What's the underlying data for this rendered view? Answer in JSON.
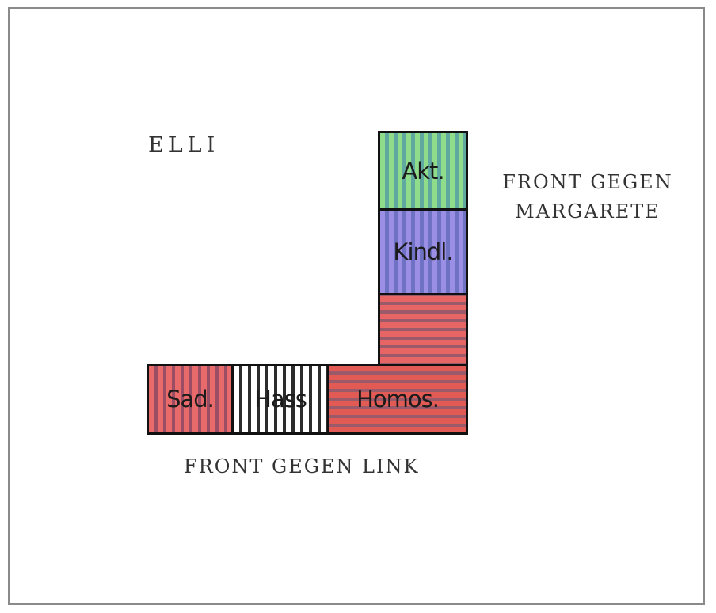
{
  "title": "ELLI",
  "front_right": [
    "FRONT GEGEN",
    "MARGARETE"
  ],
  "front_bottom": "FRONT GEGEN LINK",
  "blocks": {
    "akt": "Akt.",
    "kindl": "Kindl.",
    "sad": "Sad.",
    "hass": "Hass",
    "homos": "Homos."
  },
  "colors": {
    "akt": "#8fdc8a",
    "kindl": "#9a8fe4",
    "homos": "#e76565",
    "sad": "#e86a6a",
    "hass": "#2c2c2c"
  }
}
